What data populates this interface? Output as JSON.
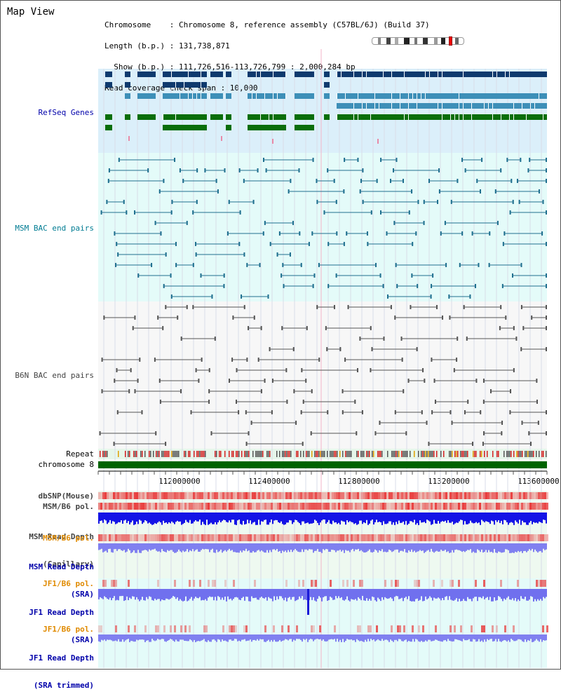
{
  "title": "Map View",
  "info": {
    "line1": "Chromosome    : Chromosome 8, reference assembly (C57BL/6J) (Build 37)",
    "line2": "Length (b.p.) : 131,738,871",
    "line3": "  Show (b.p.) : 111,726,516-113,726,799 : 2,000,284 bp",
    "line4": "Read coverage check span : 10,000"
  },
  "tracks": {
    "refseq": "RefSeq Genes",
    "msm_bac": "MSM BAC end pairs",
    "b6n_bac": "B6N BAC end pairs",
    "repeat": "Repeat",
    "chromosome": "chromosome 8",
    "dbsnp": "dbSNP(Mouse)",
    "msm_b6_pol": "MSM/B6 pol.",
    "msm_read_depth_cap_1": "MSM Read Depth",
    "msm_read_depth_cap_2": "(Capillary)",
    "msm_b6_pol_2": "MSM/B6 pol.",
    "msm_read_depth_sra_1": "MSM Read Depth",
    "msm_read_depth_sra_2": "(SRA)",
    "jf1_b6_pol": "JF1/B6 pol.",
    "jf1_read_depth_sra_1": "JF1 Read Depth",
    "jf1_read_depth_sra_2": "(SRA)",
    "jf1_b6_pol_2": "JF1/B6 pol.",
    "jf1_read_depth_trim_1": "JF1 Read Depth",
    "jf1_read_depth_trim_2": "(SRA trimmed)"
  },
  "ruler": {
    "ticks": [
      "112000000",
      "112400000",
      "112800000",
      "113200000",
      "113600000"
    ]
  },
  "colors": {
    "refseq_bg": "#dbeffa",
    "msm_bac_bg": "#e4fbf9",
    "b6n_bac_bg": "#f7f7f7",
    "chromosome_bar": "#006400",
    "label_blue": "#0000aa",
    "label_teal": "#007c93",
    "label_gray": "#444444",
    "label_orange": "#e08a00",
    "read_depth_blue": "#1414e6",
    "read_depth_light": "#8080f0",
    "pol_red": "#e83030",
    "lower_bg": "#eaf8ee"
  }
}
